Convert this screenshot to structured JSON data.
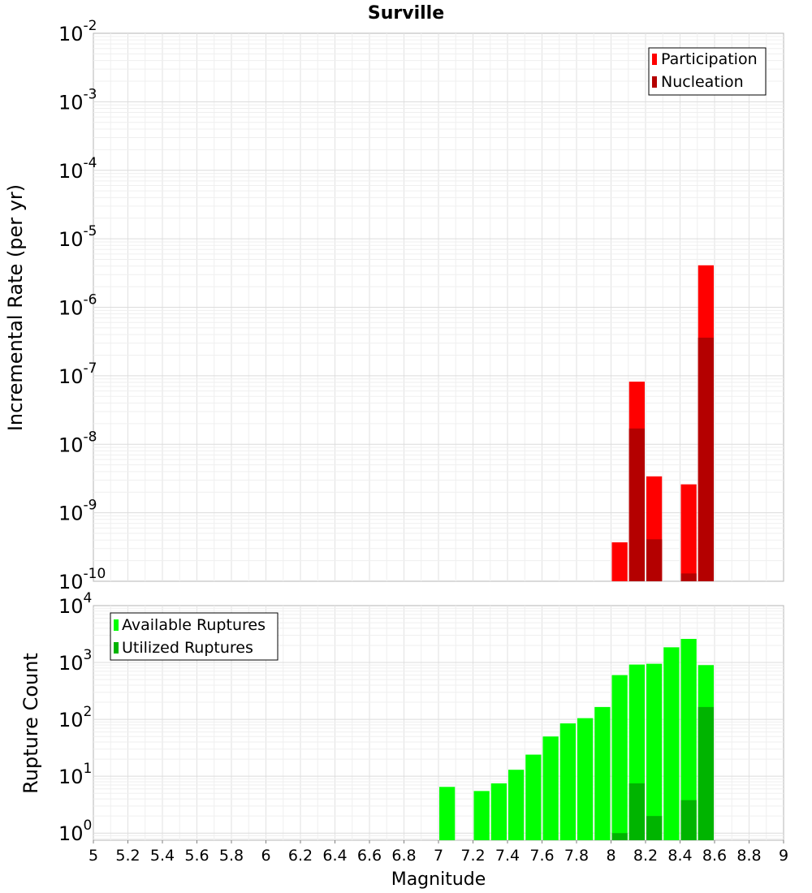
{
  "title": "Surville",
  "chart_data": [
    {
      "type": "bar",
      "panel": "top",
      "title": "Surville",
      "xlabel": "",
      "ylabel": "Incremental Rate (per yr)",
      "yscale": "log",
      "ylim": [
        1e-10,
        0.01
      ],
      "xlim": [
        5,
        9
      ],
      "bin_width": 0.1,
      "grid": true,
      "legend_position": "top-right",
      "y_ticks": [
        {
          "base": "10",
          "exp": "-2",
          "value": 0.01
        },
        {
          "base": "10",
          "exp": "-3",
          "value": 0.001
        },
        {
          "base": "10",
          "exp": "-4",
          "value": 0.0001
        },
        {
          "base": "10",
          "exp": "-5",
          "value": 1e-05
        },
        {
          "base": "10",
          "exp": "-6",
          "value": 1e-06
        },
        {
          "base": "10",
          "exp": "-7",
          "value": 1e-07
        },
        {
          "base": "10",
          "exp": "-8",
          "value": 1e-08
        },
        {
          "base": "10",
          "exp": "-9",
          "value": 1e-09
        },
        {
          "base": "10",
          "exp": "-10",
          "value": 1e-10
        }
      ],
      "series": [
        {
          "name": "Participation",
          "color": "#ff0000",
          "points": [
            {
              "x": 8.05,
              "y": 3.7e-10
            },
            {
              "x": 8.15,
              "y": 8.2e-08
            },
            {
              "x": 8.25,
              "y": 3.4e-09
            },
            {
              "x": 8.45,
              "y": 2.6e-09
            },
            {
              "x": 8.55,
              "y": 4.1e-06
            }
          ]
        },
        {
          "name": "Nucleation",
          "color": "#b40000",
          "points": [
            {
              "x": 8.15,
              "y": 1.7e-08
            },
            {
              "x": 8.25,
              "y": 4.1e-10
            },
            {
              "x": 8.45,
              "y": 1.3e-10
            },
            {
              "x": 8.55,
              "y": 3.6e-07
            }
          ]
        }
      ]
    },
    {
      "type": "bar",
      "panel": "bottom",
      "xlabel": "Magnitude",
      "ylabel": "Rupture Count",
      "yscale": "log",
      "ylim": [
        0.75,
        10000
      ],
      "xlim": [
        5,
        9
      ],
      "bin_width": 0.1,
      "grid": true,
      "legend_position": "top-left",
      "x_ticks": [
        "5",
        "5.2",
        "5.4",
        "5.6",
        "5.8",
        "6",
        "6.2",
        "6.4",
        "6.6",
        "6.8",
        "7",
        "7.2",
        "7.4",
        "7.6",
        "7.8",
        "8",
        "8.2",
        "8.4",
        "8.6",
        "8.8",
        "9"
      ],
      "y_ticks": [
        {
          "base": "10",
          "exp": "4",
          "value": 10000
        },
        {
          "base": "10",
          "exp": "3",
          "value": 1000
        },
        {
          "base": "10",
          "exp": "2",
          "value": 100
        },
        {
          "base": "10",
          "exp": "1",
          "value": 10
        },
        {
          "base": "10",
          "exp": "0",
          "value": 1
        }
      ],
      "series": [
        {
          "name": "Available Ruptures",
          "color": "#00ff00",
          "points": [
            {
              "x": 7.05,
              "y": 6.5
            },
            {
              "x": 7.25,
              "y": 5.5
            },
            {
              "x": 7.35,
              "y": 7.5
            },
            {
              "x": 7.45,
              "y": 13
            },
            {
              "x": 7.55,
              "y": 24
            },
            {
              "x": 7.65,
              "y": 50
            },
            {
              "x": 7.75,
              "y": 85
            },
            {
              "x": 7.85,
              "y": 105
            },
            {
              "x": 7.95,
              "y": 165
            },
            {
              "x": 8.05,
              "y": 600
            },
            {
              "x": 8.15,
              "y": 920
            },
            {
              "x": 8.25,
              "y": 950
            },
            {
              "x": 8.35,
              "y": 1850
            },
            {
              "x": 8.45,
              "y": 2600
            },
            {
              "x": 8.55,
              "y": 900
            }
          ]
        },
        {
          "name": "Utilized Ruptures",
          "color": "#00b400",
          "points": [
            {
              "x": 8.05,
              "y": 1
            },
            {
              "x": 8.15,
              "y": 7.5
            },
            {
              "x": 8.25,
              "y": 2
            },
            {
              "x": 8.45,
              "y": 3.8
            },
            {
              "x": 8.55,
              "y": 165
            }
          ]
        }
      ]
    }
  ]
}
